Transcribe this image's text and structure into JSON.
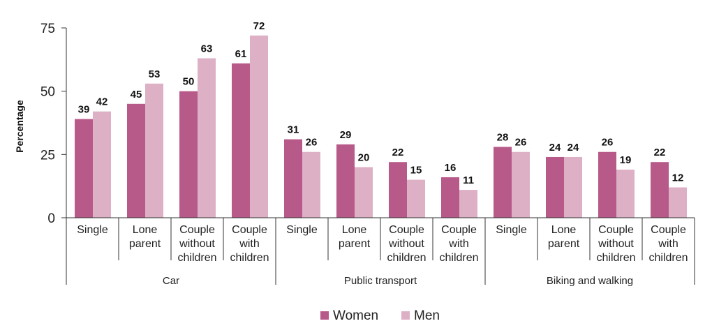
{
  "chart_data": {
    "type": "bar",
    "ylabel": "Percentage",
    "ylim": [
      0,
      75
    ],
    "yticks": [
      "0",
      "25",
      "50",
      "75"
    ],
    "grid": false,
    "legend_position": "bottom",
    "groups": [
      {
        "label": "Car",
        "categories": [
          [
            "Single"
          ],
          [
            "Lone",
            "parent"
          ],
          [
            "Couple",
            "without",
            "children"
          ],
          [
            "Couple",
            "with",
            "children"
          ]
        ]
      },
      {
        "label": "Public transport",
        "categories": [
          [
            "Single"
          ],
          [
            "Lone",
            "parent"
          ],
          [
            "Couple",
            "without",
            "children"
          ],
          [
            "Couple",
            "with",
            "children"
          ]
        ]
      },
      {
        "label": "Biking and walking",
        "categories": [
          [
            "Single"
          ],
          [
            "Lone",
            "parent"
          ],
          [
            "Couple",
            "without",
            "children"
          ],
          [
            "Couple",
            "with",
            "children"
          ]
        ]
      }
    ],
    "series": [
      {
        "name": "Women",
        "color": "#b85a89",
        "values": [
          39,
          45,
          50,
          61,
          31,
          29,
          22,
          16,
          28,
          24,
          26,
          22
        ]
      },
      {
        "name": "Men",
        "color": "#ddb0c6",
        "values": [
          42,
          53,
          63,
          72,
          26,
          20,
          15,
          11,
          26,
          24,
          19,
          12
        ]
      }
    ]
  }
}
